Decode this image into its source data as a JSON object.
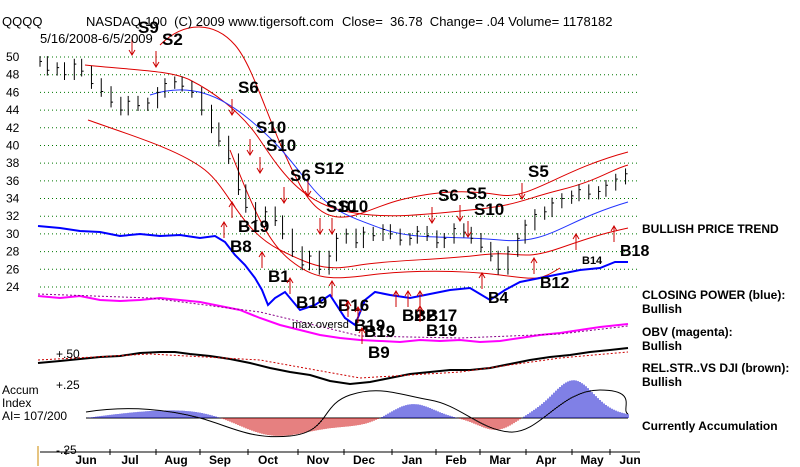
{
  "header": {
    "ticker": "QQQQ",
    "title": "NASDAQ-100  (C) 2009 www.tigersoft.com",
    "quote": "Close=  36.78  Change= .04 Volume= 1178182",
    "date_range": "5/16/2008-6/5/2009"
  },
  "right_labels": {
    "bullish_trend": "BULLISH PRICE TREND",
    "closing_power_1": "CLOSING POWER (blue):",
    "closing_power_2": "Bullish",
    "obv_1": "OBV (magenta):",
    "obv_2": "Bullish",
    "relstr_1": "REL.STR..VS DJI (brown):",
    "relstr_2": "Bullish",
    "accum": "Currently Accumulation"
  },
  "left_labels": {
    "accum_index": "Accum",
    "index": "Index",
    "ai": "AI= 107/200",
    "plus50": "+.50",
    "plus25": "+.25",
    "minus25": "-.25",
    "max_oversold": "max.oversd"
  },
  "colors": {
    "price": "#000000",
    "bands": "#dd0000",
    "closing_power": "#0000ff",
    "obv": "#ff00ff",
    "relstr": "#000000",
    "accum_pos": "#0000cc",
    "accum_neg": "#cc0000",
    "grid": "#007700"
  },
  "chart_data": {
    "type": "line",
    "y_ticks": [
      24,
      26,
      28,
      30,
      32,
      34,
      36,
      38,
      40,
      42,
      44,
      46,
      48,
      50
    ],
    "ylim": [
      23,
      51.5
    ],
    "x_months": [
      "Jun",
      "Jul",
      "Aug",
      "Sep",
      "Oct",
      "Nov",
      "Dec",
      "Jan",
      "Feb",
      "Mar",
      "Apr",
      "May",
      "Jun"
    ],
    "series": [
      {
        "points": [
          [
            0,
            49.5
          ],
          [
            3,
            48.5
          ],
          [
            7,
            48.8
          ],
          [
            10,
            48
          ],
          [
            14,
            49.2
          ],
          [
            17,
            48.4
          ],
          [
            21,
            47
          ],
          [
            25,
            46.1
          ],
          [
            29,
            44.9
          ],
          [
            33,
            44
          ],
          [
            36,
            45
          ],
          [
            40,
            44.5
          ],
          [
            44,
            44.8
          ],
          [
            48,
            46
          ],
          [
            51,
            47
          ],
          [
            55,
            47.2
          ],
          [
            58,
            46.7
          ],
          [
            62,
            46
          ],
          [
            66,
            44
          ],
          [
            70,
            42
          ],
          [
            73,
            40.5
          ],
          [
            77,
            38.5
          ],
          [
            81,
            35
          ],
          [
            84,
            33
          ],
          [
            88,
            31.5
          ],
          [
            92,
            32.5
          ],
          [
            96,
            31.5
          ],
          [
            99,
            30
          ],
          [
            103,
            28
          ],
          [
            107,
            26.5
          ],
          [
            110,
            27.5
          ],
          [
            114,
            26
          ],
          [
            118,
            27.5
          ],
          [
            121,
            29.5
          ],
          [
            125,
            30
          ],
          [
            129,
            29
          ],
          [
            132,
            30.2
          ],
          [
            136,
            29.8
          ],
          [
            140,
            30.5
          ],
          [
            143,
            30
          ],
          [
            147,
            29.3
          ],
          [
            151,
            29.5
          ],
          [
            154,
            30.3
          ],
          [
            158,
            29.8
          ],
          [
            162,
            29
          ],
          [
            165,
            29.5
          ],
          [
            169,
            30.6
          ],
          [
            173,
            30.2
          ],
          [
            176,
            29.5
          ],
          [
            180,
            28.5
          ],
          [
            184,
            27.5
          ],
          [
            187,
            26
          ],
          [
            191,
            28
          ],
          [
            195,
            29.5
          ],
          [
            198,
            31
          ],
          [
            202,
            32.2
          ],
          [
            206,
            32.5
          ],
          [
            209,
            33.5
          ],
          [
            213,
            34
          ],
          [
            217,
            34.3
          ],
          [
            220,
            35
          ],
          [
            224,
            34.5
          ],
          [
            228,
            34.8
          ],
          [
            231,
            35.5
          ],
          [
            235,
            36.2
          ],
          [
            239,
            36.8
          ]
        ]
      }
    ],
    "signals": [
      "S9",
      "S2",
      "S6",
      "S10",
      "S10",
      "S12",
      "S6",
      "S10",
      "S10",
      "S6",
      "S5",
      "S10",
      "S5",
      "B19",
      "B8",
      "B1",
      "B19",
      "B16",
      "B19",
      "B19",
      "B9",
      "B2",
      "B2",
      "B17",
      "B19",
      "B4",
      "B12",
      "B14",
      "B18"
    ]
  }
}
